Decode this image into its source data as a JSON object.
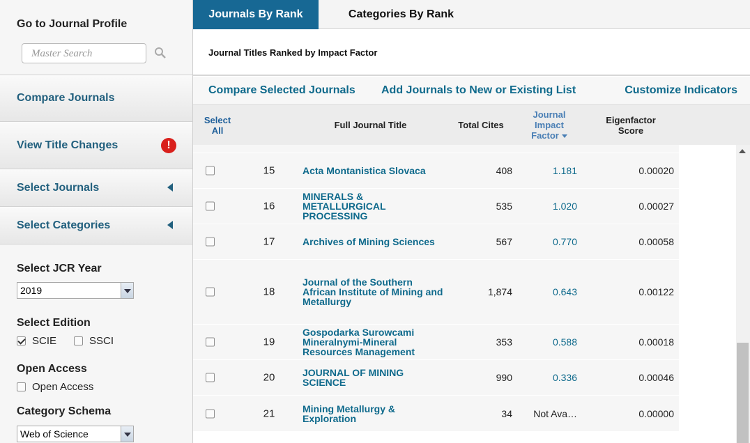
{
  "sidebar": {
    "profile_title": "Go to Journal Profile",
    "search_placeholder": "Master Search",
    "nav": [
      {
        "label": "Compare Journals"
      },
      {
        "label": "View Title Changes",
        "alert": true
      },
      {
        "label": "Select Journals",
        "expandable": true
      },
      {
        "label": "Select Categories",
        "expandable": true
      }
    ],
    "jcr_year": {
      "label": "Select JCR Year",
      "value": "2019"
    },
    "edition": {
      "label": "Select Edition",
      "options": [
        {
          "label": "SCIE",
          "checked": true
        },
        {
          "label": "SSCI",
          "checked": false
        }
      ]
    },
    "open_access": {
      "label": "Open Access",
      "options": [
        {
          "label": "Open Access",
          "checked": false
        }
      ]
    },
    "category_schema": {
      "label": "Category Schema",
      "value": "Web of Science"
    }
  },
  "tabs": [
    {
      "label": "Journals By Rank",
      "active": true
    },
    {
      "label": "Categories By Rank",
      "active": false
    }
  ],
  "subtitle": "Journal Titles Ranked by Impact Factor",
  "actions": [
    "Compare Selected Journals",
    "Add Journals to New or Existing List",
    "Customize Indicators"
  ],
  "table": {
    "columns": [
      "Select All",
      "Full Journal Title",
      "Total Cites",
      "Journal Impact Factor",
      "Eigenfactor Score"
    ],
    "sort_column": 3,
    "rows": [
      [
        "15",
        "Acta Montanistica Slovaca",
        "408",
        "1.181",
        "0.00020"
      ],
      [
        "16",
        "MINERALS & METALLURGICAL PROCESSING",
        "535",
        "1.020",
        "0.00027"
      ],
      [
        "17",
        "Archives of Mining Sciences",
        "567",
        "0.770",
        "0.00058"
      ],
      [
        "18",
        "Journal of the Southern African Institute of Mining and Metallurgy",
        "1,874",
        "0.643",
        "0.00122"
      ],
      [
        "19",
        "Gospodarka Surowcami Mineralnymi-Mineral Resources Management",
        "353",
        "0.588",
        "0.00018"
      ],
      [
        "20",
        "JOURNAL OF MINING SCIENCE",
        "990",
        "0.336",
        "0.00046"
      ],
      [
        "21",
        "Mining Metallurgy & Exploration",
        "34",
        "Not Ava…",
        "0.00000"
      ]
    ]
  }
}
